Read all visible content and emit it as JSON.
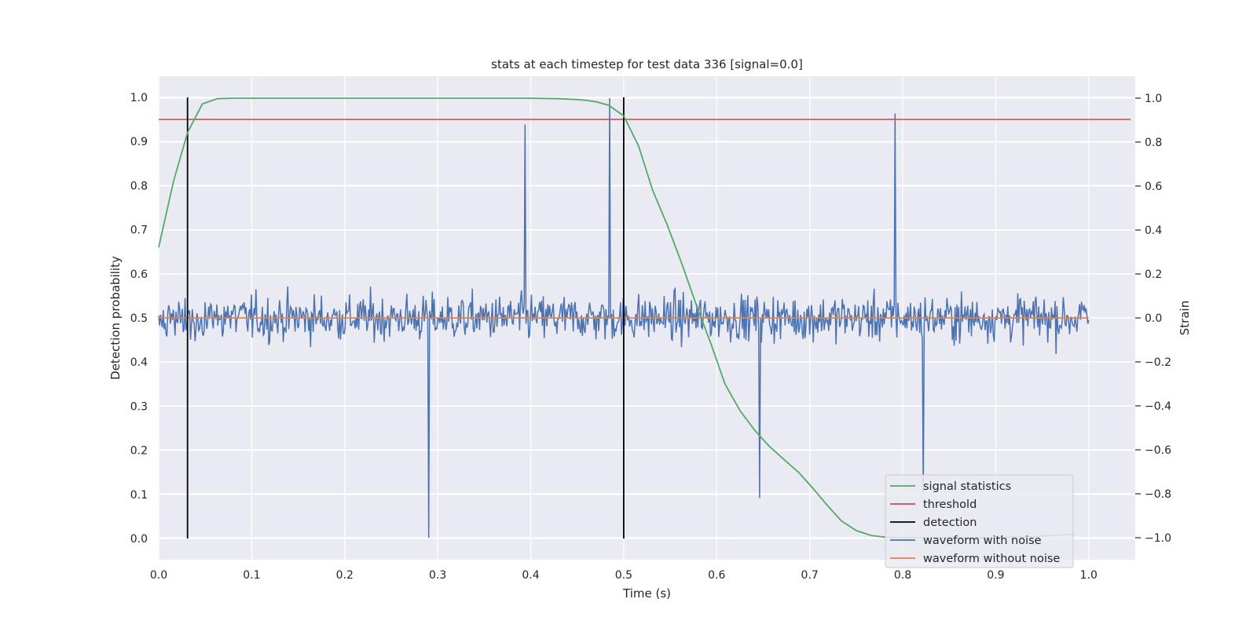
{
  "chart_data": {
    "type": "line",
    "title": "stats at each timestep for test data 336 [signal=0.0]",
    "xlabel": "Time (s)",
    "ylabel": "Detection probability",
    "y2label": "Strain",
    "xlim": [
      0.0,
      1.05
    ],
    "ylim": [
      -0.048,
      1.048
    ],
    "y2lim": [
      -1.1,
      1.1
    ],
    "x_ticks": [
      "0.0",
      "0.1",
      "0.2",
      "0.3",
      "0.4",
      "0.5",
      "0.6",
      "0.7",
      "0.8",
      "0.9",
      "1.0"
    ],
    "y_ticks": [
      "0.0",
      "0.1",
      "0.2",
      "0.3",
      "0.4",
      "0.5",
      "0.6",
      "0.7",
      "0.8",
      "0.9",
      "1.0"
    ],
    "y2_ticks": [
      "−1.0",
      "−0.8",
      "−0.6",
      "−0.4",
      "−0.2",
      "0.0",
      "0.2",
      "0.4",
      "0.6",
      "0.8",
      "1.0"
    ],
    "grid": true,
    "legend_position": "lower-right",
    "colors": {
      "signal_statistics": "#55a868",
      "threshold": "#c44e52",
      "detection": "#000000",
      "waveform_with_noise": "#4c72b0",
      "waveform_without_noise": "#dd8452",
      "background": "#eaeaf2",
      "grid": "#ffffff"
    },
    "series": [
      {
        "name": "signal statistics",
        "axis": "left",
        "x": [
          0.0,
          0.016,
          0.031,
          0.047,
          0.063,
          0.078,
          0.094,
          0.2,
          0.3,
          0.4,
          0.43,
          0.45,
          0.46,
          0.47,
          0.484,
          0.5,
          0.516,
          0.531,
          0.547,
          0.563,
          0.578,
          0.594,
          0.609,
          0.625,
          0.641,
          0.656,
          0.672,
          0.688,
          0.703,
          0.719,
          0.734,
          0.75,
          0.766,
          0.781,
          0.797,
          0.813,
          0.828,
          0.844,
          0.859,
          0.875,
          0.891,
          0.906,
          0.922,
          0.938,
          0.953,
          0.969,
          0.984
        ],
        "y": [
          0.66,
          0.81,
          0.92,
          0.985,
          0.997,
          0.998,
          0.998,
          0.998,
          0.998,
          0.998,
          0.997,
          0.995,
          0.993,
          0.99,
          0.982,
          0.958,
          0.89,
          0.79,
          0.71,
          0.62,
          0.53,
          0.44,
          0.35,
          0.29,
          0.245,
          0.21,
          0.18,
          0.15,
          0.115,
          0.075,
          0.04,
          0.018,
          0.007,
          0.003,
          0.002,
          0.002,
          0.002,
          0.002,
          0.002,
          0.002,
          0.002,
          0.003,
          0.003,
          0.004,
          0.006,
          0.008,
          0.01
        ]
      },
      {
        "name": "threshold",
        "axis": "left",
        "x": [
          0.0,
          1.045
        ],
        "y": [
          0.95,
          0.95
        ]
      },
      {
        "name": "detection",
        "axis": "left",
        "x": [
          0.031,
          0.5
        ],
        "y_range": [
          0.0,
          1.0
        ]
      },
      {
        "name": "waveform with noise",
        "axis": "right",
        "x_range": [
          0.0,
          1.0
        ],
        "n_samples": 1024,
        "peaks": [
          {
            "x": 0.29,
            "y": -1.0
          },
          {
            "x": 0.394,
            "y": 0.88
          },
          {
            "x": 0.485,
            "y": 1.0
          },
          {
            "x": 0.792,
            "y": 0.93
          },
          {
            "x": 0.822,
            "y": -0.8
          },
          {
            "x": 0.646,
            "y": -0.82
          }
        ]
      },
      {
        "name": "waveform without noise",
        "axis": "right",
        "x": [
          0.0,
          1.0
        ],
        "y": [
          0.0,
          0.0
        ]
      }
    ],
    "legend": [
      "signal statistics",
      "threshold",
      "detection",
      "waveform with noise",
      "waveform without noise"
    ]
  }
}
